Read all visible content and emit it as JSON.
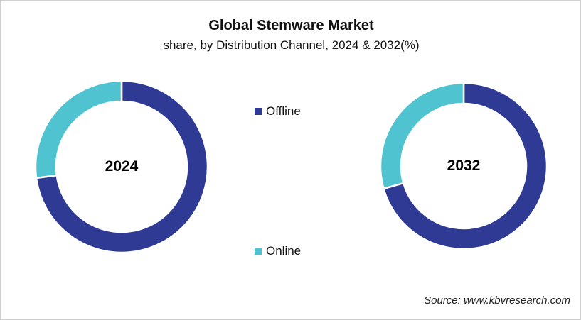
{
  "chart_data": {
    "type": "pie",
    "variant": "donut",
    "title": "Global Stemware Market",
    "subtitle": "share, by Distribution Channel, 2024 & 2032(%)",
    "categories": [
      "Offline",
      "Online"
    ],
    "colors": {
      "Offline": "#2e3a94",
      "Online": "#4fc3cf"
    },
    "series": [
      {
        "name": "2024",
        "values": [
          72.9,
          27.1
        ]
      },
      {
        "name": "2032",
        "values": [
          70.6,
          29.4
        ]
      }
    ],
    "legend_position": "center",
    "source": "Source: www.kbvresearch.com"
  },
  "header": {
    "title": "Global Stemware Market",
    "subtitle": "share, by Distribution Channel, 2024 & 2032(%)"
  },
  "donuts": [
    {
      "label": "2024"
    },
    {
      "label": "2032"
    }
  ],
  "legend": [
    {
      "label": "Offline",
      "color": "#2e3a94"
    },
    {
      "label": "Online",
      "color": "#4fc3cf"
    }
  ],
  "footer": {
    "source": "Source: www.kbvresearch.com"
  }
}
